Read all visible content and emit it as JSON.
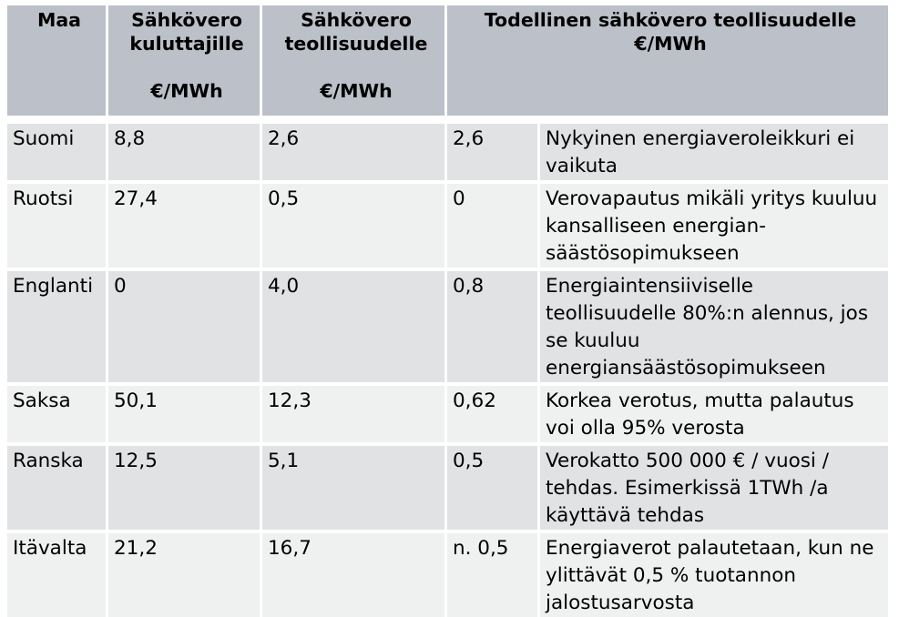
{
  "table": {
    "headers": {
      "country": "Maa",
      "consumer_tax": "Sähkövero kuluttajille",
      "consumer_unit": "€/MWh",
      "industry_tax": "Sähkövero teollisuudelle",
      "industry_unit": "€/MWh",
      "actual_tax": "Todellinen sähkövero teollisuudelle €/MWh"
    },
    "rows": [
      {
        "country": "Suomi",
        "consumer": "8,8",
        "industry": "2,6",
        "actual": "2,6",
        "note": "Nykyinen energiaveroleikkuri ei vaikuta"
      },
      {
        "country": "Ruotsi",
        "consumer": "27,4",
        "industry": "0,5",
        "actual": "0",
        "note": "Verovapautus mikäli yritys kuuluu kansalliseen energian-säästösopimukseen"
      },
      {
        "country": "Englanti",
        "consumer": "0",
        "industry": "4,0",
        "actual": "0,8",
        "note": "Energiaintensiiviselle teollisuudelle 80%:n alennus, jos se kuuluu energiansäästösopimukseen"
      },
      {
        "country": "Saksa",
        "consumer": "50,1",
        "industry": "12,3",
        "actual": "0,62",
        "note": "Korkea verotus, mutta palautus voi olla 95% verosta"
      },
      {
        "country": "Ranska",
        "consumer": "12,5",
        "industry": "5,1",
        "actual": "0,5",
        "note": "Verokatto 500 000 € / vuosi / tehdas. Esimerkissä 1TWh /a käyttävä tehdas"
      },
      {
        "country": "Itävalta",
        "consumer": "21,2",
        "industry": "16,7",
        "actual": "n. 0,5",
        "note": "Energiaverot palautetaan, kun ne ylittävät 0,5 % tuotannon jalostusarvosta"
      }
    ]
  },
  "colors": {
    "header_bg": "#bcc0c8",
    "row_odd_bg": "#e1e2e3",
    "row_even_bg": "#eff0f0"
  }
}
